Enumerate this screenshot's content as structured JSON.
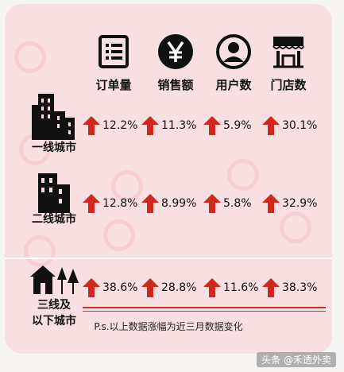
{
  "headers": [
    {
      "label": "订单量",
      "icon": "order-list-icon"
    },
    {
      "label": "销售额",
      "icon": "yen-coin-icon"
    },
    {
      "label": "用户数",
      "icon": "user-avatar-icon"
    },
    {
      "label": "门店数",
      "icon": "store-awning-icon"
    }
  ],
  "rows": [
    {
      "label": "一线城市",
      "icon": "tall-buildings-icon",
      "values": [
        "12.2%",
        "11.3%",
        "5.9%",
        "30.1%"
      ]
    },
    {
      "label": "二线城市",
      "icon": "mid-buildings-icon",
      "values": [
        "12.8%",
        "8.99%",
        "5.8%",
        "32.9%"
      ]
    },
    {
      "label_line1": "三线及",
      "label_line2": "以下城市",
      "icon": "house-trees-icon",
      "values": [
        "38.6%",
        "28.8%",
        "11.6%",
        "38.3%"
      ]
    }
  ],
  "note": "P.s.以上数据涨幅为近三月数据变化",
  "source": "头条 @禾透外卖",
  "colors": {
    "panel": "#f7dfe2",
    "arrow": "#d0281d",
    "line": "#c8352c"
  }
}
